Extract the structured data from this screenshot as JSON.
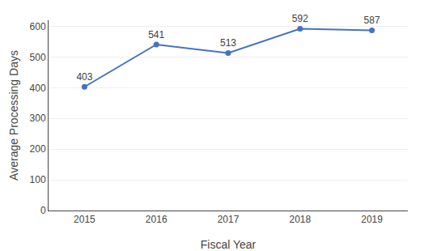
{
  "chart_data": {
    "type": "line",
    "x": [
      2015,
      2016,
      2017,
      2018,
      2019
    ],
    "values": [
      403,
      541,
      513,
      592,
      587
    ],
    "color": "#4472C4",
    "marker": "circle",
    "xlabel": "Fiscal Year",
    "ylabel": "Average Processing Days",
    "xlim": [
      2014.5,
      2019.5
    ],
    "xticks": [
      2015,
      2016,
      2017,
      2018,
      2019
    ],
    "ylim": [
      0,
      620
    ],
    "yticks": [
      0,
      100,
      200,
      300,
      400,
      500,
      600
    ],
    "grid": true,
    "data_labels": true
  }
}
